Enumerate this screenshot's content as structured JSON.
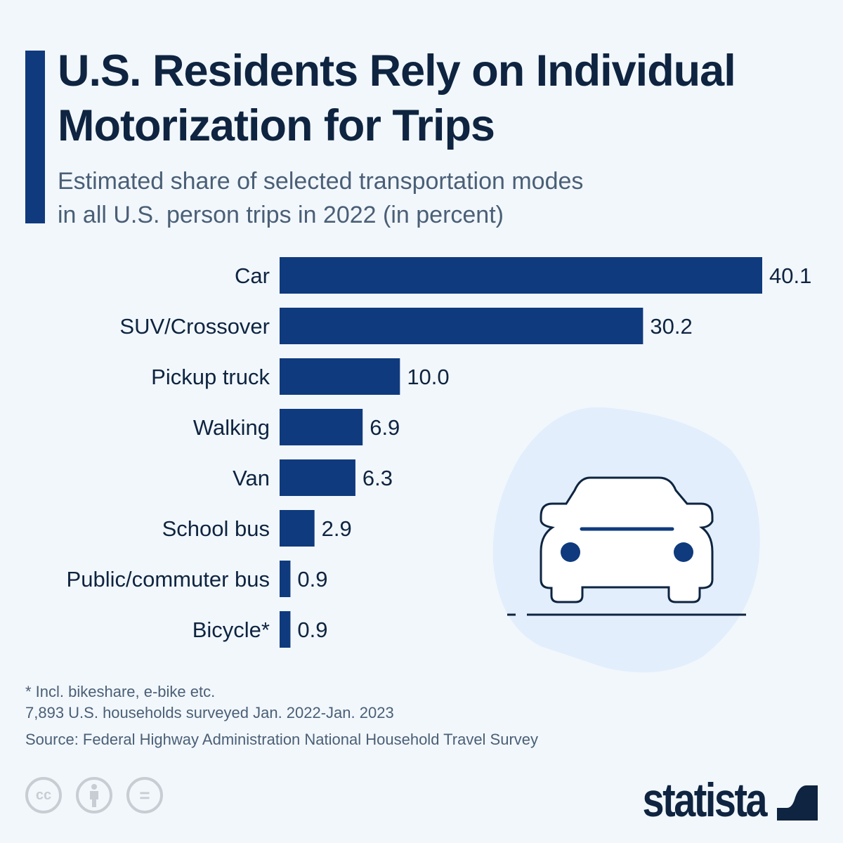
{
  "header": {
    "title_line1": "U.S. Residents Rely on Individual",
    "title_line2": "Motorization for Trips",
    "subtitle_line1": "Estimated share of selected transportation modes",
    "subtitle_line2": "in all U.S. person trips in 2022 (in percent)"
  },
  "chart_data": {
    "type": "bar",
    "orientation": "horizontal",
    "title": "U.S. Residents Rely on Individual Motorization for Trips",
    "subtitle": "Estimated share of selected transportation modes in all U.S. person trips in 2022 (in percent)",
    "categories": [
      "Car",
      "SUV/Crossover",
      "Pickup truck",
      "Walking",
      "Van",
      "School bus",
      "Public/commuter bus",
      "Bicycle*"
    ],
    "values": [
      40.1,
      30.2,
      10.0,
      6.9,
      6.3,
      2.9,
      0.9,
      0.9
    ],
    "value_labels": [
      "40.1",
      "30.2",
      "10.0",
      "6.9",
      "6.3",
      "2.9",
      "0.9",
      "0.9"
    ],
    "xlim": [
      0,
      40.1
    ],
    "grid": false,
    "bar_color": "#0f3a7d"
  },
  "footer": {
    "note": "* Incl. bikeshare, e-bike etc.",
    "sample": "7,893 U.S. households surveyed Jan. 2022-Jan. 2023",
    "source": "Source: Federal Highway Administration National Household Travel Survey"
  },
  "license_icons": [
    "cc-icon",
    "attribution-icon",
    "no-derivatives-icon"
  ],
  "cc_labels": {
    "cc": "cc",
    "nd": "="
  },
  "logo": {
    "text": "statista"
  },
  "illustration": "car-icon"
}
